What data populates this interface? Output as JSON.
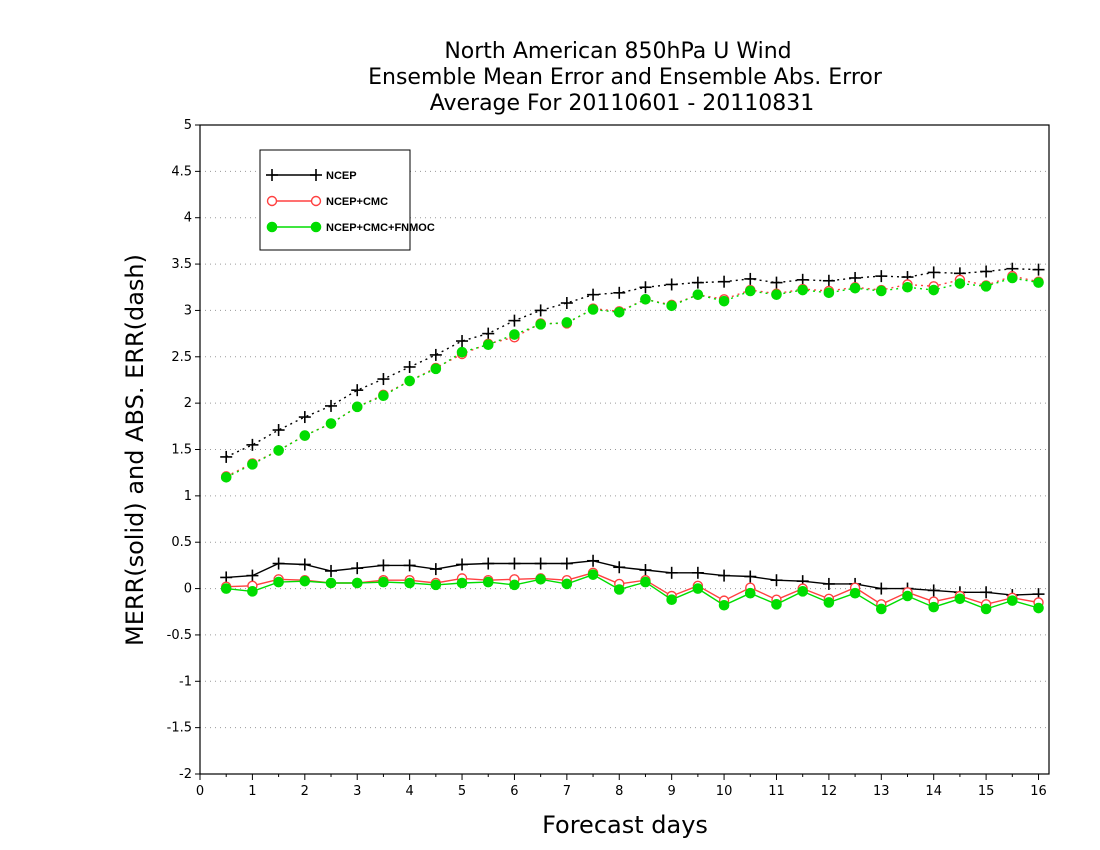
{
  "chart_data": {
    "type": "line",
    "title": [
      "North American 850hPa U Wind",
      "Ensemble Mean Error and Ensemble Abs. Error",
      "Average For 20110601 - 20110831"
    ],
    "xlabel": "Forecast days",
    "ylabel": "MERR(solid) and ABS. ERR(dash)",
    "xlim": [
      0,
      16.2
    ],
    "ylim": [
      -2,
      5
    ],
    "xticks": [
      "0",
      "1",
      "2",
      "3",
      "4",
      "5",
      "6",
      "7",
      "8",
      "9",
      "10",
      "11",
      "12",
      "13",
      "14",
      "15",
      "16"
    ],
    "yticks": [
      "-2",
      "-1.5",
      "-1",
      "-0.5",
      "0",
      "0.5",
      "1",
      "1.5",
      "2",
      "2.5",
      "3",
      "3.5",
      "4",
      "4.5",
      "5"
    ],
    "grid": "horizontal dotted",
    "legend_position": "top-left",
    "x": [
      0.5,
      1,
      1.5,
      2,
      2.5,
      3,
      3.5,
      4,
      4.5,
      5,
      5.5,
      6,
      6.5,
      7,
      7.5,
      8,
      8.5,
      9,
      9.5,
      10,
      10.5,
      11,
      11.5,
      12,
      12.5,
      13,
      13.5,
      14,
      14.5,
      15,
      15.5,
      16
    ],
    "series": [
      {
        "name": "NCEP",
        "color": "#000000",
        "marker": "plus",
        "merr": [
          0.12,
          0.14,
          0.27,
          0.26,
          0.19,
          0.22,
          0.25,
          0.25,
          0.21,
          0.26,
          0.27,
          0.27,
          0.27,
          0.27,
          0.3,
          0.23,
          0.2,
          0.17,
          0.17,
          0.14,
          0.13,
          0.09,
          0.08,
          0.05,
          0.05,
          0.0,
          0.0,
          -0.02,
          -0.04,
          -0.04,
          -0.07,
          -0.06
        ],
        "abs_err": [
          1.42,
          1.55,
          1.71,
          1.85,
          1.97,
          2.14,
          2.26,
          2.39,
          2.52,
          2.67,
          2.75,
          2.89,
          3.0,
          3.08,
          3.17,
          3.19,
          3.25,
          3.28,
          3.3,
          3.31,
          3.34,
          3.3,
          3.33,
          3.32,
          3.35,
          3.37,
          3.36,
          3.41,
          3.4,
          3.42,
          3.45,
          3.44
        ]
      },
      {
        "name": "NCEP+CMC",
        "color": "#ff4040",
        "marker": "open-circle",
        "merr": [
          0.02,
          0.03,
          0.1,
          0.09,
          0.06,
          0.06,
          0.09,
          0.09,
          0.06,
          0.11,
          0.09,
          0.1,
          0.11,
          0.09,
          0.17,
          0.05,
          0.09,
          -0.08,
          0.03,
          -0.13,
          0.01,
          -0.12,
          0.0,
          -0.11,
          0.01,
          -0.17,
          -0.04,
          -0.14,
          -0.08,
          -0.17,
          -0.1,
          -0.15
        ],
        "abs_err": [
          1.21,
          1.35,
          1.49,
          1.65,
          1.78,
          1.96,
          2.09,
          2.24,
          2.38,
          2.53,
          2.64,
          2.71,
          2.86,
          2.86,
          3.02,
          2.99,
          3.12,
          3.06,
          3.17,
          3.12,
          3.22,
          3.18,
          3.23,
          3.21,
          3.25,
          3.22,
          3.28,
          3.26,
          3.33,
          3.27,
          3.37,
          3.31
        ]
      },
      {
        "name": "NCEP+CMC+FNMOC",
        "color": "#00dd00",
        "marker": "filled-circle",
        "merr": [
          0.0,
          -0.03,
          0.07,
          0.08,
          0.06,
          0.06,
          0.07,
          0.06,
          0.04,
          0.06,
          0.07,
          0.04,
          0.1,
          0.05,
          0.15,
          -0.01,
          0.07,
          -0.12,
          0.0,
          -0.18,
          -0.05,
          -0.17,
          -0.03,
          -0.15,
          -0.05,
          -0.22,
          -0.08,
          -0.2,
          -0.11,
          -0.22,
          -0.13,
          -0.21
        ],
        "abs_err": [
          1.2,
          1.34,
          1.49,
          1.65,
          1.78,
          1.96,
          2.08,
          2.24,
          2.37,
          2.55,
          2.63,
          2.74,
          2.85,
          2.87,
          3.01,
          2.98,
          3.12,
          3.05,
          3.17,
          3.1,
          3.21,
          3.17,
          3.22,
          3.19,
          3.24,
          3.21,
          3.25,
          3.22,
          3.29,
          3.26,
          3.35,
          3.3
        ]
      }
    ]
  }
}
